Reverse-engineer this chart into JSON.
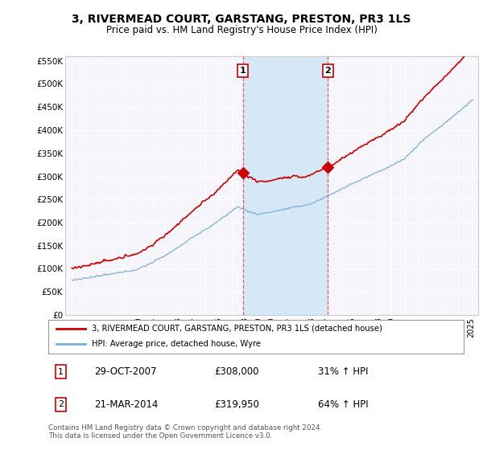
{
  "title": "3, RIVERMEAD COURT, GARSTANG, PRESTON, PR3 1LS",
  "subtitle": "Price paid vs. HM Land Registry's House Price Index (HPI)",
  "legend_line1": "3, RIVERMEAD COURT, GARSTANG, PRESTON, PR3 1LS (detached house)",
  "legend_line2": "HPI: Average price, detached house, Wyre",
  "annotation1_date": "29-OCT-2007",
  "annotation1_price": "£308,000",
  "annotation1_hpi": "31% ↑ HPI",
  "annotation2_date": "21-MAR-2014",
  "annotation2_price": "£319,950",
  "annotation2_hpi": "64% ↑ HPI",
  "footer": "Contains HM Land Registry data © Crown copyright and database right 2024.\nThis data is licensed under the Open Government Licence v3.0.",
  "red_color": "#cc0000",
  "blue_color": "#7ab0d4",
  "sale1_x": 2007.83,
  "sale1_y": 308000,
  "sale2_x": 2014.22,
  "sale2_y": 319950,
  "ylim": [
    0,
    560000
  ],
  "xlim": [
    1994.5,
    2025.5
  ],
  "yticks": [
    0,
    50000,
    100000,
    150000,
    200000,
    250000,
    300000,
    350000,
    400000,
    450000,
    500000,
    550000
  ],
  "ytick_labels": [
    "£0",
    "£50K",
    "£100K",
    "£150K",
    "£200K",
    "£250K",
    "£300K",
    "£350K",
    "£400K",
    "£450K",
    "£500K",
    "£550K"
  ],
  "bg_color": "#f5f5fb",
  "grid_color": "#ffffff",
  "span_color": "#d6e8f5"
}
